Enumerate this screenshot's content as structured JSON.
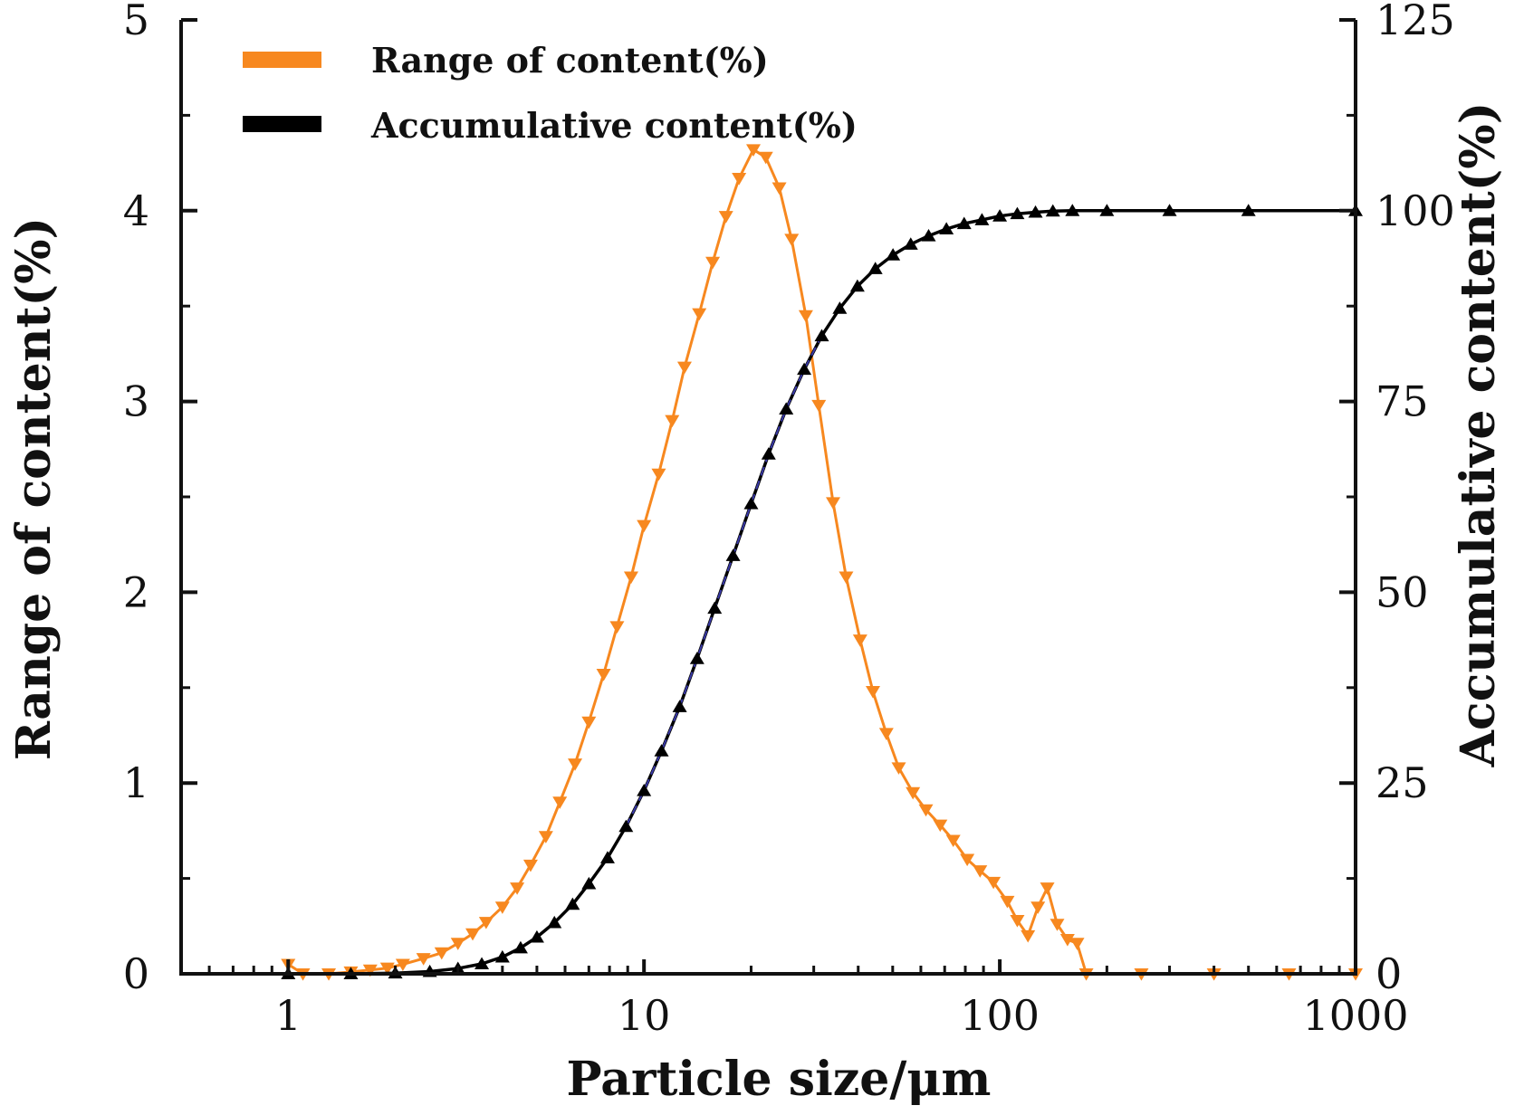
{
  "chart_data": {
    "type": "line",
    "xscale": "log",
    "xlim": [
      0.5,
      1000
    ],
    "xticks": [
      1,
      10,
      100,
      1000
    ],
    "xtick_labels": [
      "1",
      "10",
      "100",
      "1000"
    ],
    "xlabel": "Particle size/μm",
    "ylabel_left": "Range of content(%)",
    "ylabel_right": "Accumulative content(%)",
    "ylim_left": [
      0,
      5
    ],
    "ylim_right": [
      0,
      125
    ],
    "yticks_left": [
      "0",
      "1",
      "2",
      "3",
      "4",
      "5"
    ],
    "yticks_right": [
      "0",
      "25",
      "50",
      "75",
      "100",
      "125"
    ],
    "legend_position": "top-left",
    "series": [
      {
        "name": "Range of content(%)",
        "axis": "left",
        "color": "#f7881f",
        "marker": "triangle-down",
        "points": [
          [
            1.0,
            0.05
          ],
          [
            1.1,
            0.0
          ],
          [
            1.3,
            0.0
          ],
          [
            1.5,
            0.01
          ],
          [
            1.7,
            0.02
          ],
          [
            1.9,
            0.03
          ],
          [
            2.1,
            0.05
          ],
          [
            2.4,
            0.08
          ],
          [
            2.7,
            0.11
          ],
          [
            3.0,
            0.16
          ],
          [
            3.3,
            0.21
          ],
          [
            3.6,
            0.27
          ],
          [
            4.0,
            0.35
          ],
          [
            4.4,
            0.45
          ],
          [
            4.8,
            0.57
          ],
          [
            5.3,
            0.72
          ],
          [
            5.8,
            0.9
          ],
          [
            6.4,
            1.1
          ],
          [
            7.0,
            1.32
          ],
          [
            7.7,
            1.57
          ],
          [
            8.4,
            1.82
          ],
          [
            9.2,
            2.08
          ],
          [
            10.0,
            2.35
          ],
          [
            11.0,
            2.62
          ],
          [
            12.0,
            2.9
          ],
          [
            13.0,
            3.18
          ],
          [
            14.3,
            3.46
          ],
          [
            15.6,
            3.73
          ],
          [
            17.0,
            3.97
          ],
          [
            18.5,
            4.17
          ],
          [
            20.3,
            4.32
          ],
          [
            22.0,
            4.28
          ],
          [
            24.0,
            4.12
          ],
          [
            26.0,
            3.85
          ],
          [
            28.5,
            3.45
          ],
          [
            31.0,
            2.98
          ],
          [
            34.0,
            2.47
          ],
          [
            37.0,
            2.08
          ],
          [
            40.5,
            1.75
          ],
          [
            44.0,
            1.48
          ],
          [
            48.0,
            1.26
          ],
          [
            52.0,
            1.08
          ],
          [
            57.0,
            0.95
          ],
          [
            62.0,
            0.86
          ],
          [
            68.0,
            0.78
          ],
          [
            74.0,
            0.7
          ],
          [
            81.0,
            0.6
          ],
          [
            88.0,
            0.54
          ],
          [
            96.0,
            0.48
          ],
          [
            105.0,
            0.38
          ],
          [
            112.0,
            0.28
          ],
          [
            120.0,
            0.2
          ],
          [
            128.0,
            0.35
          ],
          [
            136.0,
            0.45
          ],
          [
            145.0,
            0.26
          ],
          [
            155.0,
            0.18
          ],
          [
            165.0,
            0.16
          ],
          [
            175.0,
            0.0
          ],
          [
            250.0,
            0.0
          ],
          [
            400.0,
            0.0
          ],
          [
            650.0,
            0.0
          ],
          [
            1000.0,
            0.0
          ]
        ]
      },
      {
        "name": "Accumulative content(%)",
        "axis": "right",
        "color": "#000000",
        "marker": "triangle-up",
        "points": [
          [
            1.0,
            0.0
          ],
          [
            1.5,
            0.0
          ],
          [
            2.0,
            0.1
          ],
          [
            2.5,
            0.3
          ],
          [
            3.0,
            0.7
          ],
          [
            3.5,
            1.3
          ],
          [
            4.0,
            2.2
          ],
          [
            4.5,
            3.4
          ],
          [
            5.0,
            4.8
          ],
          [
            5.6,
            6.7
          ],
          [
            6.3,
            9.1
          ],
          [
            7.0,
            11.8
          ],
          [
            7.9,
            15.2
          ],
          [
            8.9,
            19.3
          ],
          [
            10.0,
            24.0
          ],
          [
            11.2,
            29.2
          ],
          [
            12.6,
            35.0
          ],
          [
            14.1,
            41.3
          ],
          [
            15.8,
            47.9
          ],
          [
            17.8,
            54.8
          ],
          [
            20.0,
            61.6
          ],
          [
            22.4,
            68.1
          ],
          [
            25.1,
            74.0
          ],
          [
            28.2,
            79.2
          ],
          [
            31.6,
            83.6
          ],
          [
            35.5,
            87.2
          ],
          [
            39.8,
            90.1
          ],
          [
            44.7,
            92.4
          ],
          [
            50.1,
            94.2
          ],
          [
            56.2,
            95.6
          ],
          [
            63.1,
            96.7
          ],
          [
            70.8,
            97.6
          ],
          [
            79.4,
            98.3
          ],
          [
            89.1,
            98.8
          ],
          [
            100.0,
            99.3
          ],
          [
            112.0,
            99.6
          ],
          [
            126.0,
            99.8
          ],
          [
            141.0,
            99.95
          ],
          [
            160.0,
            100.0
          ],
          [
            200.0,
            100.0
          ],
          [
            300.0,
            100.0
          ],
          [
            500.0,
            100.0
          ],
          [
            1000.0,
            100.0
          ]
        ]
      }
    ]
  }
}
